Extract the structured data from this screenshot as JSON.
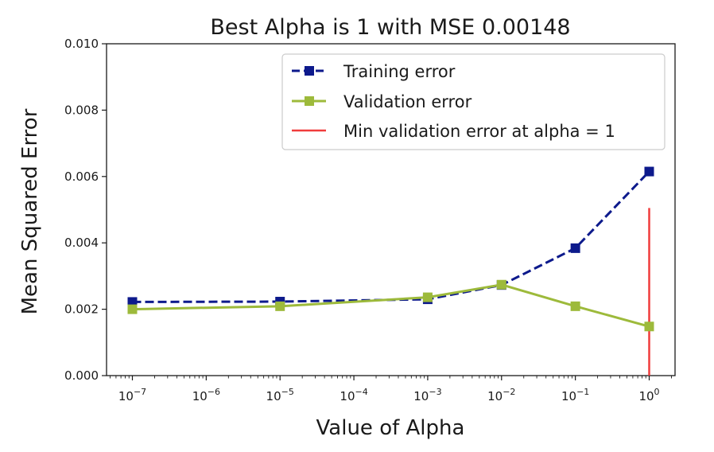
{
  "chart_data": {
    "type": "line",
    "title": "Best Alpha is 1 with MSE 0.00148",
    "xlabel": "Value of Alpha",
    "ylabel": "Mean Squared Error",
    "xscale": "log",
    "xlim": [
      1e-07,
      1
    ],
    "ylim": [
      0.0,
      0.01
    ],
    "yticks": [
      "0.000",
      "0.002",
      "0.004",
      "0.006",
      "0.008",
      "0.010"
    ],
    "xticks": [
      {
        "base": "10",
        "exp": "−7"
      },
      {
        "base": "10",
        "exp": "−6"
      },
      {
        "base": "10",
        "exp": "−5"
      },
      {
        "base": "10",
        "exp": "−4"
      },
      {
        "base": "10",
        "exp": "−3"
      },
      {
        "base": "10",
        "exp": "−2"
      },
      {
        "base": "10",
        "exp": "−1"
      },
      {
        "base": "10",
        "exp": "0"
      }
    ],
    "x": [
      1e-07,
      1e-05,
      0.001,
      0.01,
      0.1,
      1
    ],
    "series": [
      {
        "name": "Training error",
        "color": "#0d1a8c",
        "linestyle": "dashed",
        "marker": "square",
        "values": [
          0.00222,
          0.00223,
          0.0023,
          0.00273,
          0.00384,
          0.00615
        ]
      },
      {
        "name": "Validation error",
        "color": "#9dba3b",
        "linestyle": "solid",
        "marker": "square",
        "values": [
          0.002,
          0.00209,
          0.00236,
          0.00274,
          0.00209,
          0.00148
        ]
      }
    ],
    "vline": {
      "name": "Min validation error at alpha = 1",
      "x": 1,
      "y_range": [
        0.0,
        0.00505
      ],
      "color": "#f03c3c"
    },
    "legend_position": "top-right",
    "grid": false
  }
}
